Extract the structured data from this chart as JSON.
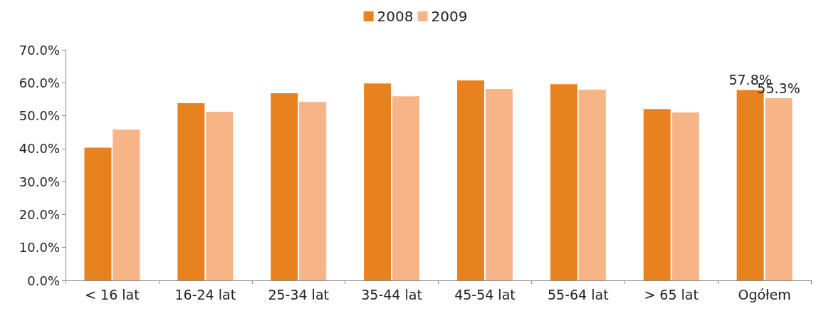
{
  "chart_data": {
    "type": "bar",
    "categories": [
      "< 16 lat",
      "16-24 lat",
      "25-34 lat",
      "35-44 lat",
      "45-54 lat",
      "55-64 lat",
      "> 65 lat",
      "Ogółem"
    ],
    "series": [
      {
        "name": "2008",
        "color": "#e8821e",
        "values": [
          40.3,
          53.8,
          56.8,
          59.8,
          60.7,
          59.6,
          52.0,
          57.8
        ],
        "value_labels": [
          null,
          null,
          null,
          null,
          null,
          null,
          null,
          "57.8%"
        ]
      },
      {
        "name": "2009",
        "color": "#f7b487",
        "values": [
          45.8,
          51.2,
          54.2,
          55.9,
          58.1,
          57.9,
          51.0,
          55.3
        ],
        "value_labels": [
          null,
          null,
          null,
          null,
          null,
          null,
          null,
          "55.3%"
        ]
      }
    ],
    "ylim": [
      0,
      70
    ],
    "yticks": [
      {
        "value": 0,
        "label": "0.0%"
      },
      {
        "value": 10,
        "label": "10.0%"
      },
      {
        "value": 20,
        "label": "20.0%"
      },
      {
        "value": 30,
        "label": "30.0%"
      },
      {
        "value": 40,
        "label": "40.0%"
      },
      {
        "value": 50,
        "label": "50.0%"
      },
      {
        "value": 60,
        "label": "60.0%"
      },
      {
        "value": 70,
        "label": "70.0%"
      }
    ],
    "grid": false,
    "legend": "top"
  }
}
